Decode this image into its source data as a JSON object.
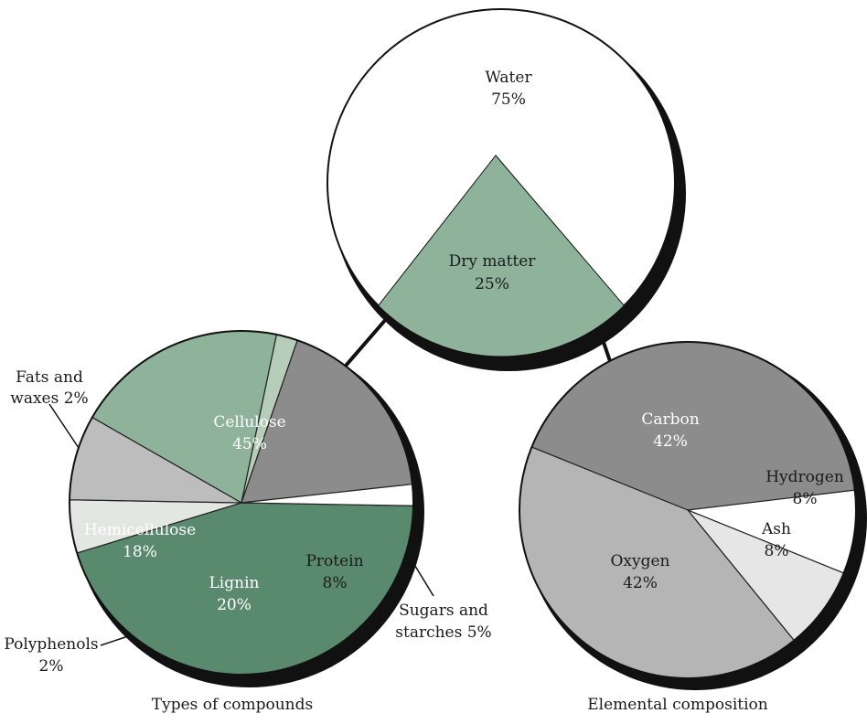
{
  "chart_data": [
    {
      "type": "pie",
      "caption": "",
      "slices": [
        {
          "name": "Water",
          "value": 75,
          "value_label": "75%",
          "color": "#ffffff"
        },
        {
          "name": "Dry matter",
          "value": 25,
          "value_label": "25%",
          "color": "#8fb39a"
        }
      ]
    },
    {
      "type": "pie",
      "caption": "Types of compounds",
      "slices": [
        {
          "name": "Cellulose",
          "value": 45,
          "value_label": "45%",
          "color": "#5a8a6e"
        },
        {
          "name": "Sugars and starches",
          "value": 5,
          "value_label": "5%",
          "color": "#e2e7e2"
        },
        {
          "name": "Protein",
          "value": 8,
          "value_label": "8%",
          "color": "#bdbdbd"
        },
        {
          "name": "Lignin",
          "value": 20,
          "value_label": "20%",
          "color": "#8fb39a"
        },
        {
          "name": "Polyphenols",
          "value": 2,
          "value_label": "2%",
          "color": "#b5cdb9"
        },
        {
          "name": "Hemicellulose",
          "value": 18,
          "value_label": "18%",
          "color": "#8c8c8c"
        },
        {
          "name": "Fats and waxes",
          "value": 2,
          "value_label": "2%",
          "color": "#ffffff"
        }
      ],
      "outside_labels": [
        {
          "lines": [
            "Fats and",
            "waxes 2%"
          ]
        },
        {
          "lines": [
            "Sugars and",
            "starches 5%"
          ]
        },
        {
          "lines": [
            "Polyphenols",
            "2%"
          ]
        }
      ]
    },
    {
      "type": "pie",
      "caption": "Elemental composition",
      "slices": [
        {
          "name": "Carbon",
          "value": 42,
          "value_label": "42%",
          "color": "#8c8c8c"
        },
        {
          "name": "Hydrogen",
          "value": 8,
          "value_label": "8%",
          "color": "#ffffff"
        },
        {
          "name": "Ash",
          "value": 8,
          "value_label": "8%",
          "color": "#e6e6e6"
        },
        {
          "name": "Oxygen",
          "value": 42,
          "value_label": "42%",
          "color": "#b5b5b5"
        }
      ]
    }
  ]
}
